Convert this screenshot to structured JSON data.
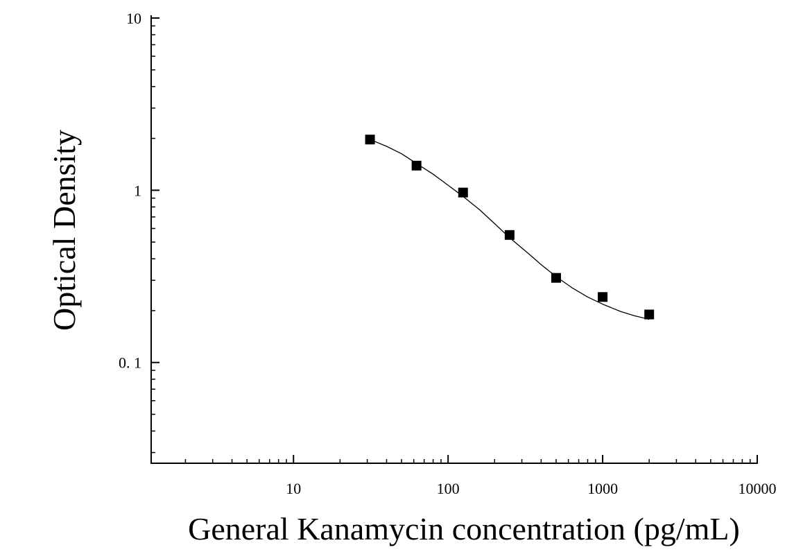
{
  "chart_data": {
    "type": "scatter",
    "xlabel": "General Kanamycin concentration (pg/mL)",
    "ylabel": "Optical Density",
    "x_scale": "log",
    "y_scale": "log",
    "xlim": [
      1.2,
      10000
    ],
    "ylim": [
      0.026,
      10
    ],
    "x_ticks": [
      {
        "value": 10,
        "label": "10"
      },
      {
        "value": 100,
        "label": "100"
      },
      {
        "value": 1000,
        "label": "1000"
      },
      {
        "value": 10000,
        "label": "10000"
      }
    ],
    "y_ticks": [
      {
        "value": 0.1,
        "label": "0. 1"
      },
      {
        "value": 1,
        "label": "1"
      },
      {
        "value": 10,
        "label": "10"
      }
    ],
    "grid": false,
    "series": [
      {
        "marker": "square",
        "color": "#000000",
        "points": [
          {
            "x": 31.25,
            "y": 1.97
          },
          {
            "x": 62.5,
            "y": 1.39
          },
          {
            "x": 125,
            "y": 0.97
          },
          {
            "x": 250,
            "y": 0.55
          },
          {
            "x": 500,
            "y": 0.31
          },
          {
            "x": 1000,
            "y": 0.24
          },
          {
            "x": 2000,
            "y": 0.19
          }
        ]
      }
    ],
    "fit_curve": {
      "color": "#000000",
      "points": [
        {
          "x": 31.25,
          "y": 1.97
        },
        {
          "x": 40,
          "y": 1.8
        },
        {
          "x": 50,
          "y": 1.63
        },
        {
          "x": 62.5,
          "y": 1.43
        },
        {
          "x": 80,
          "y": 1.24
        },
        {
          "x": 100,
          "y": 1.07
        },
        {
          "x": 125,
          "y": 0.92
        },
        {
          "x": 160,
          "y": 0.77
        },
        {
          "x": 200,
          "y": 0.64
        },
        {
          "x": 250,
          "y": 0.53
        },
        {
          "x": 320,
          "y": 0.44
        },
        {
          "x": 400,
          "y": 0.37
        },
        {
          "x": 500,
          "y": 0.315
        },
        {
          "x": 640,
          "y": 0.27
        },
        {
          "x": 800,
          "y": 0.24
        },
        {
          "x": 1000,
          "y": 0.218
        },
        {
          "x": 1300,
          "y": 0.198
        },
        {
          "x": 1600,
          "y": 0.187
        },
        {
          "x": 2000,
          "y": 0.178
        }
      ]
    }
  }
}
